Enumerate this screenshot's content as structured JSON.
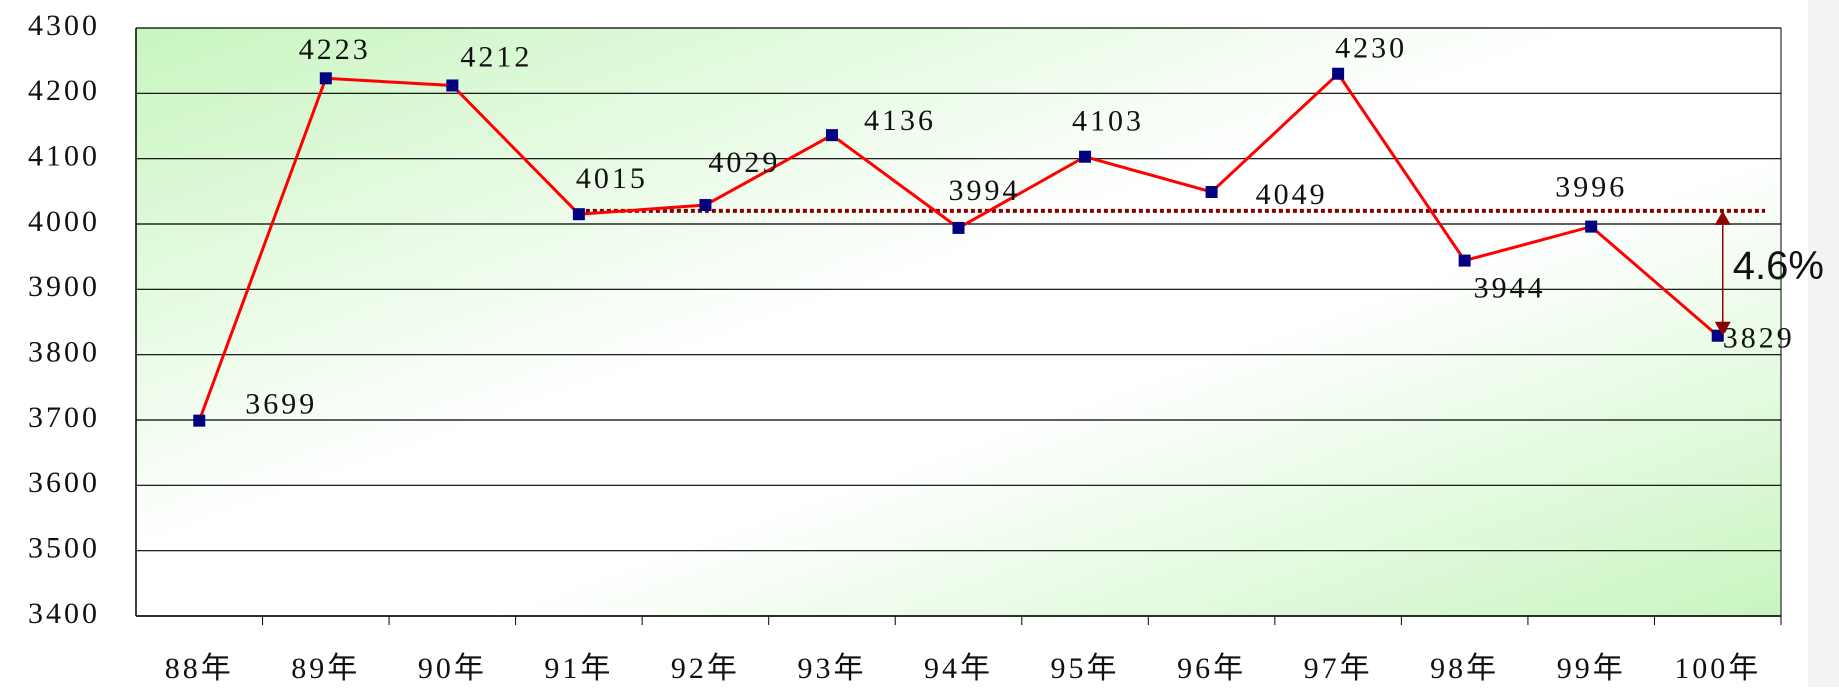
{
  "chart_data": {
    "type": "line",
    "categories": [
      "88年",
      "89年",
      "90年",
      "91年",
      "92年",
      "93年",
      "94年",
      "95年",
      "96年",
      "97年",
      "98年",
      "99年",
      "100年"
    ],
    "series": [
      {
        "color": "#ff0000",
        "marker_color": "#000080",
        "values": [
          3699,
          4223,
          4212,
          4015,
          4029,
          4136,
          3994,
          4103,
          4049,
          4230,
          3944,
          3996,
          3829
        ]
      }
    ],
    "ylim": [
      3400,
      4300
    ],
    "yticks": [
      3400,
      3500,
      3600,
      3700,
      3800,
      3900,
      4000,
      4100,
      4200,
      4300
    ],
    "grid": true,
    "reference_line": {
      "value": 4020,
      "color": "#8b0000"
    },
    "annotation": "4.6%"
  }
}
